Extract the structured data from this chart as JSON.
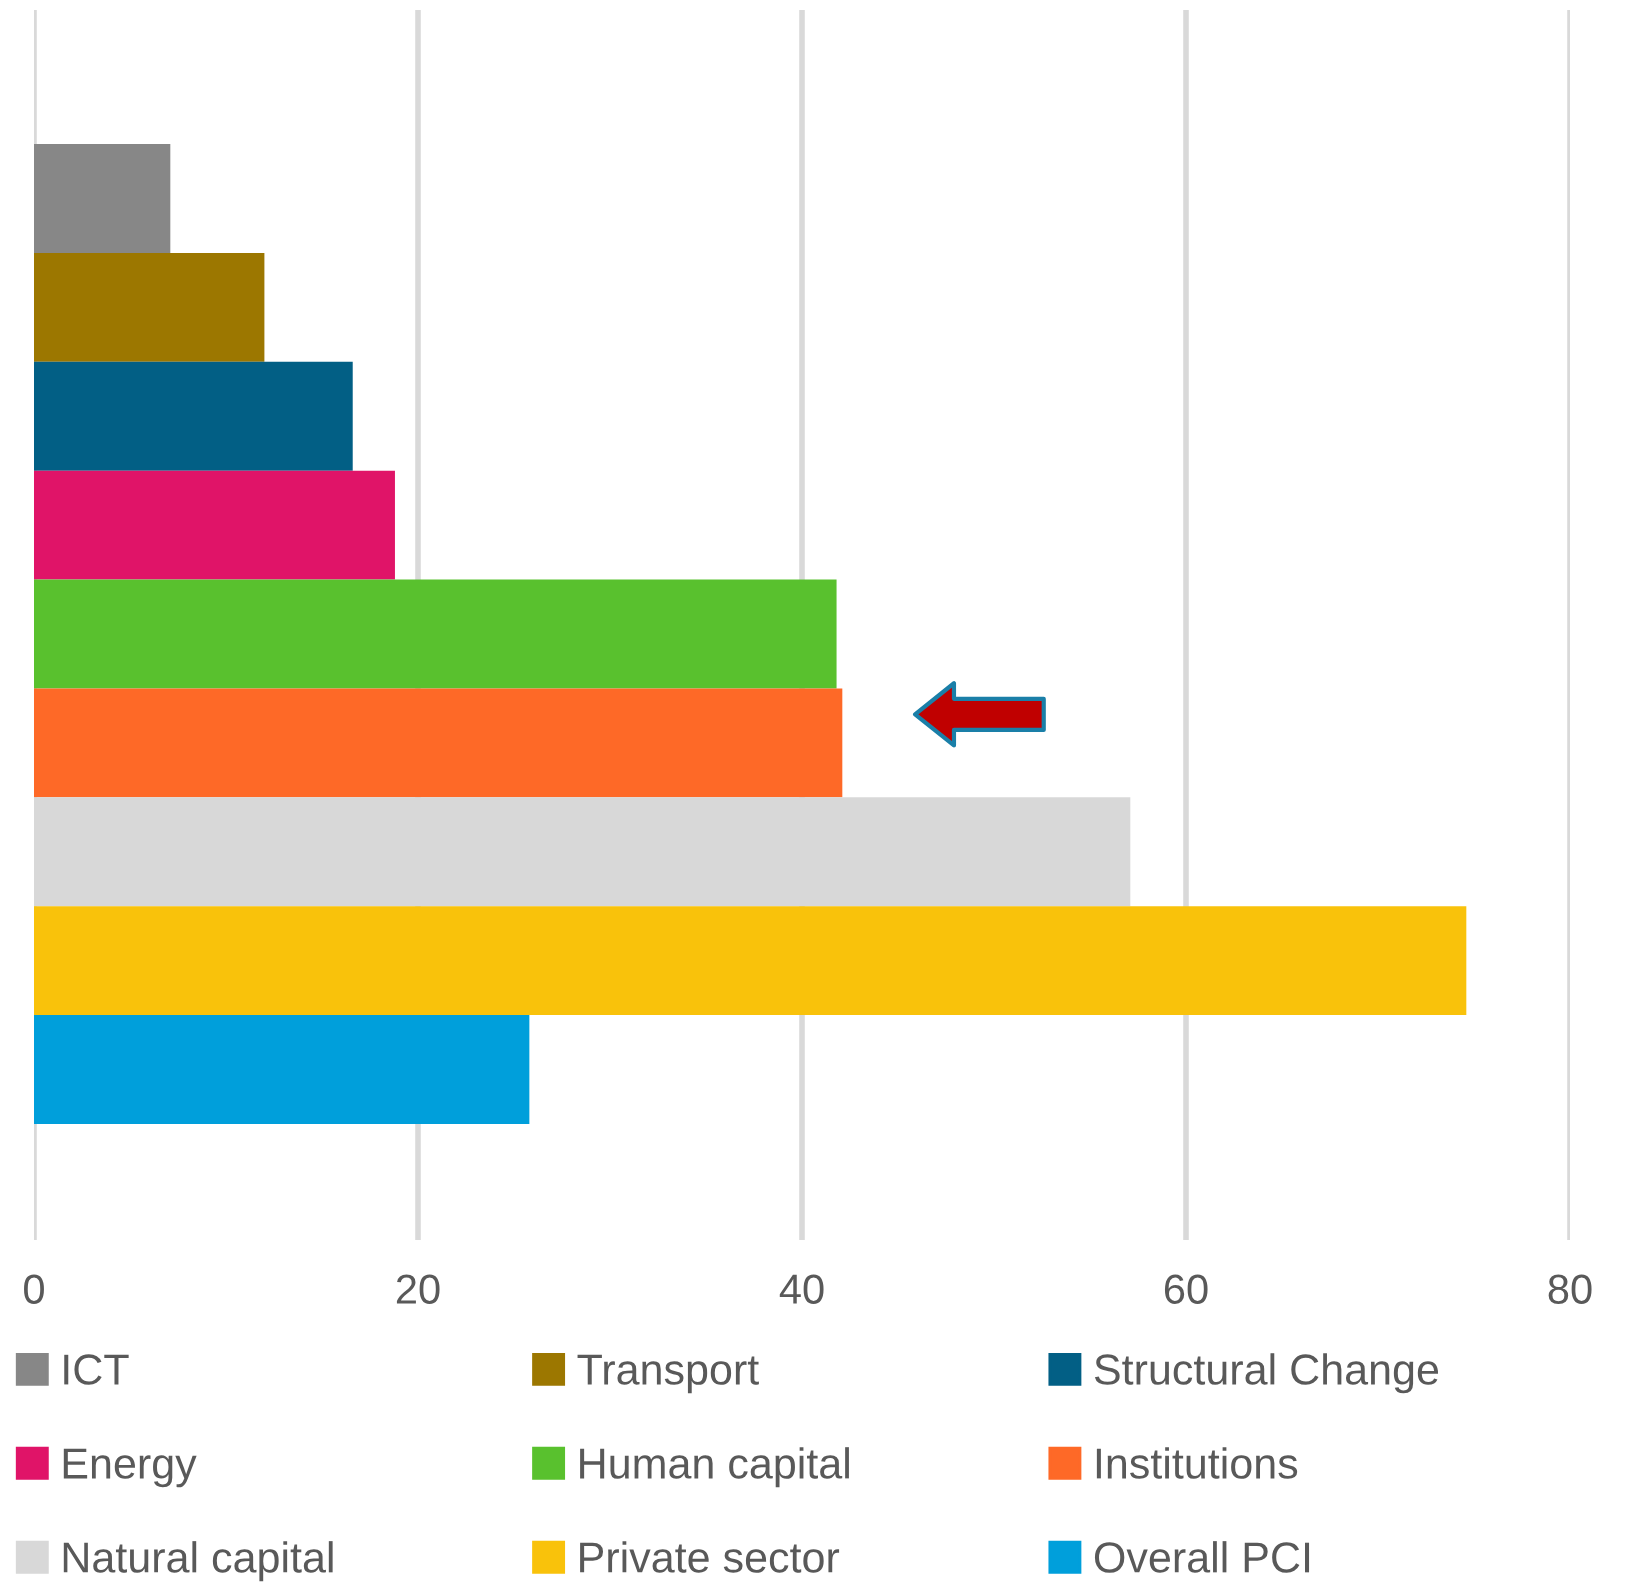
{
  "chart_data": {
    "type": "bar",
    "orientation": "horizontal",
    "categories": [
      null,
      null,
      null,
      null,
      null,
      null,
      null,
      null,
      null
    ],
    "series": [
      {
        "name": "ICT",
        "color": "#878787",
        "values": [
          7.1,
          null,
          null,
          null,
          null,
          null,
          null,
          null,
          null
        ]
      },
      {
        "name": "Transport",
        "color": "#9c7700",
        "values": [
          null,
          12.0,
          null,
          null,
          null,
          null,
          null,
          null,
          null
        ]
      },
      {
        "name": "Structural Change",
        "color": "#025f85",
        "values": [
          null,
          null,
          16.6,
          null,
          null,
          null,
          null,
          null,
          null
        ]
      },
      {
        "name": "Energy",
        "color": "#e01468",
        "values": [
          null,
          null,
          null,
          18.8,
          null,
          null,
          null,
          null,
          null
        ]
      },
      {
        "name": "Human capital",
        "color": "#59c12e",
        "values": [
          null,
          null,
          null,
          null,
          41.8,
          null,
          null,
          null,
          null
        ]
      },
      {
        "name": "Institutions",
        "color": "#fe6927",
        "values": [
          null,
          null,
          null,
          null,
          null,
          42.1,
          null,
          null,
          null
        ]
      },
      {
        "name": "Natural capital",
        "color": "#d8d8d8",
        "values": [
          null,
          null,
          null,
          null,
          null,
          null,
          57.1,
          null,
          null
        ]
      },
      {
        "name": "Private sector",
        "color": "#f9c20b",
        "values": [
          null,
          null,
          null,
          null,
          null,
          null,
          null,
          74.6,
          null
        ]
      },
      {
        "name": "Overall PCI",
        "color": "#009fdb",
        "values": [
          null,
          null,
          null,
          null,
          null,
          null,
          null,
          null,
          25.8
        ]
      }
    ],
    "stacked": true,
    "xlim": [
      0,
      80
    ],
    "xticks": [
      0,
      20,
      40,
      60,
      80
    ],
    "grid": "x",
    "legend": "bottom",
    "tick_labels": "x"
  }
}
